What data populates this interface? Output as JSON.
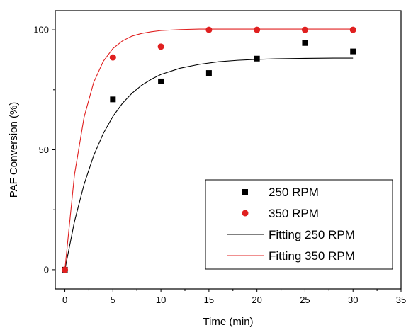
{
  "chart_data": {
    "type": "scatter",
    "xlabel": "Time (min)",
    "ylabel": "PAF Conversion (%)",
    "xlim": [
      -1,
      35
    ],
    "ylim": [
      -8,
      108
    ],
    "xticks": [
      0,
      5,
      10,
      15,
      20,
      25,
      30,
      35
    ],
    "yticks": [
      0,
      50,
      100
    ],
    "grid": false,
    "legend_position": "bottom-right",
    "series": [
      {
        "name": "250 RPM",
        "kind": "scatter",
        "marker": "square",
        "color": "#000000",
        "x": [
          0,
          5,
          10,
          15,
          20,
          25,
          30
        ],
        "y": [
          0,
          71,
          78.5,
          82,
          88,
          94.5,
          91
        ]
      },
      {
        "name": "350 RPM",
        "kind": "scatter",
        "marker": "circle",
        "color": "#e02020",
        "x": [
          0,
          5,
          10,
          15,
          20,
          25,
          30
        ],
        "y": [
          0,
          88.5,
          93,
          100,
          100,
          100,
          100
        ]
      },
      {
        "name": "Fitting 250 RPM",
        "kind": "line",
        "color": "#000000",
        "x": [
          0,
          1,
          2,
          3,
          4,
          5,
          6,
          7,
          8,
          9,
          10,
          12,
          14,
          16,
          18,
          20,
          22,
          25,
          28,
          30
        ],
        "y": [
          0,
          20.1,
          35.6,
          47.6,
          56.8,
          63.9,
          69.4,
          73.6,
          76.9,
          79.4,
          81.4,
          84.0,
          85.6,
          86.7,
          87.3,
          87.7,
          87.9,
          88.1,
          88.2,
          88.2
        ]
      },
      {
        "name": "Fitting 350 RPM",
        "kind": "line",
        "color": "#e02020",
        "x": [
          0,
          1,
          2,
          3,
          4,
          5,
          6,
          7,
          8,
          9,
          10,
          12,
          14,
          16,
          18,
          20,
          22,
          25,
          28,
          30
        ],
        "y": [
          0,
          39.6,
          63.6,
          78.1,
          86.9,
          92.2,
          95.4,
          97.4,
          98.5,
          99.2,
          99.7,
          100.1,
          100.3,
          100.3,
          100.3,
          100.3,
          100.3,
          100.3,
          100.3,
          100.3
        ]
      }
    ]
  }
}
